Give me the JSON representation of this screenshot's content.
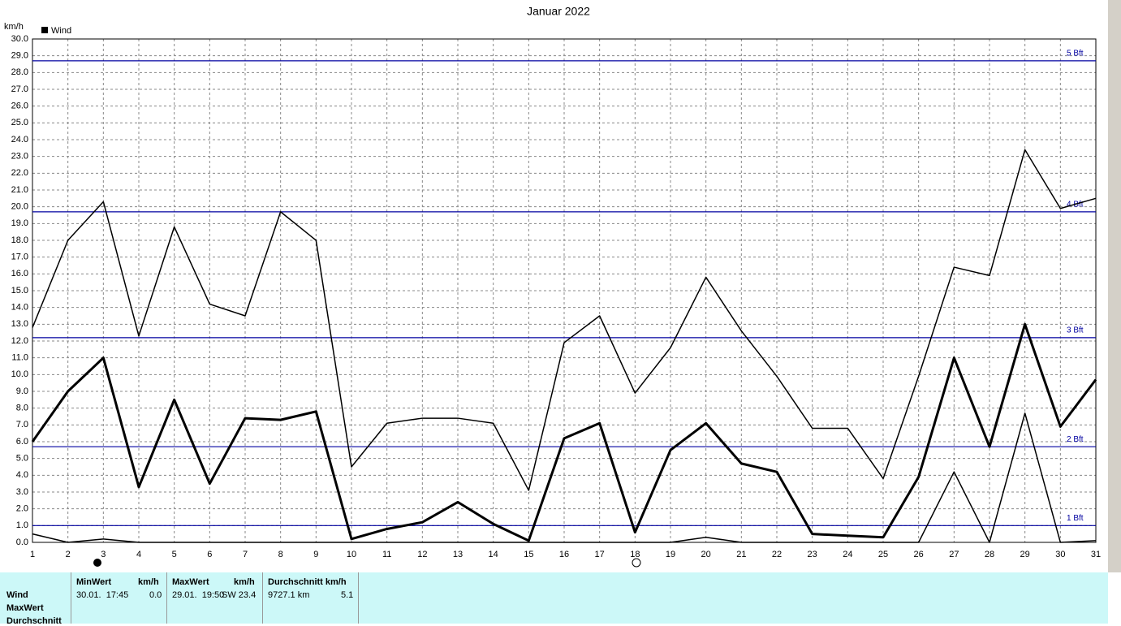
{
  "chart_data": {
    "type": "line",
    "title": "Januar 2022",
    "y_label": "km/h",
    "legend": "Wind",
    "legend_color": "#000000",
    "x": [
      1,
      2,
      3,
      4,
      5,
      6,
      7,
      8,
      9,
      10,
      11,
      12,
      13,
      14,
      15,
      16,
      17,
      18,
      19,
      20,
      21,
      22,
      23,
      24,
      25,
      26,
      27,
      28,
      29,
      30,
      31
    ],
    "xlim": [
      1,
      31
    ],
    "xticks": [
      1,
      2,
      3,
      4,
      5,
      6,
      7,
      8,
      9,
      10,
      11,
      12,
      13,
      14,
      15,
      16,
      17,
      18,
      19,
      20,
      21,
      22,
      23,
      24,
      25,
      26,
      27,
      28,
      29,
      30,
      31
    ],
    "ylim": [
      0,
      30
    ],
    "yticks": [
      {
        "value": 0,
        "label": "0.0"
      },
      {
        "value": 1,
        "label": "1.0"
      },
      {
        "value": 2,
        "label": "2.0"
      },
      {
        "value": 3,
        "label": "3.0"
      },
      {
        "value": 4,
        "label": "4.0"
      },
      {
        "value": 5,
        "label": "5.0"
      },
      {
        "value": 6,
        "label": "6.0"
      },
      {
        "value": 7,
        "label": "7.0"
      },
      {
        "value": 8,
        "label": "8.0"
      },
      {
        "value": 9,
        "label": "9.0"
      },
      {
        "value": 10,
        "label": "10.0"
      },
      {
        "value": 11,
        "label": "11.0"
      },
      {
        "value": 12,
        "label": "12.0"
      },
      {
        "value": 13,
        "label": "13.0"
      },
      {
        "value": 14,
        "label": "14.0"
      },
      {
        "value": 15,
        "label": "15.0"
      },
      {
        "value": 16,
        "label": "16.0"
      },
      {
        "value": 17,
        "label": "17.0"
      },
      {
        "value": 18,
        "label": "18.0"
      },
      {
        "value": 19,
        "label": "19.0"
      },
      {
        "value": 20,
        "label": "20.0"
      },
      {
        "value": 21,
        "label": "21.0"
      },
      {
        "value": 22,
        "label": "22.0"
      },
      {
        "value": 23,
        "label": "23.0"
      },
      {
        "value": 24,
        "label": "24.0"
      },
      {
        "value": 25,
        "label": "25.0"
      },
      {
        "value": 26,
        "label": "26.0"
      },
      {
        "value": 27,
        "label": "27.0"
      },
      {
        "value": 28,
        "label": "28.0"
      },
      {
        "value": 29,
        "label": "29.0"
      },
      {
        "value": 30,
        "label": "30.0"
      }
    ],
    "grid": true,
    "series": [
      {
        "color": "#000000",
        "width": 1.5,
        "values": [
          12.8,
          18.0,
          20.3,
          12.3,
          18.8,
          14.2,
          13.5,
          19.7,
          18.0,
          4.5,
          7.1,
          7.4,
          7.4,
          7.1,
          3.1,
          11.9,
          13.5,
          8.9,
          11.6,
          15.8,
          12.6,
          9.9,
          6.8,
          6.8,
          3.8,
          9.9,
          16.4,
          15.9,
          23.4,
          19.9,
          20.5
        ]
      },
      {
        "color": "#000000",
        "width": 3,
        "values": [
          6.0,
          9.0,
          11.0,
          3.3,
          8.5,
          3.5,
          7.4,
          7.3,
          7.8,
          0.2,
          0.8,
          1.2,
          2.4,
          1.1,
          0.1,
          6.2,
          7.1,
          0.6,
          5.5,
          7.1,
          4.7,
          4.2,
          0.5,
          0.4,
          0.3,
          3.9,
          11.0,
          5.7,
          13.0,
          6.9,
          9.7
        ]
      },
      {
        "color": "#000000",
        "width": 1.5,
        "values": [
          0.5,
          0.0,
          0.2,
          0.0,
          0.0,
          0.0,
          0.0,
          0.0,
          0.0,
          0.0,
          0.0,
          0.0,
          0.0,
          0.0,
          0.0,
          0.0,
          0.0,
          0.0,
          0.0,
          0.3,
          0.0,
          0.0,
          0.0,
          0.0,
          0.0,
          0.0,
          4.2,
          0.0,
          7.7,
          0.0,
          0.1
        ]
      }
    ],
    "reference_lines": [
      {
        "value": 1.0,
        "label": "1 Bft"
      },
      {
        "value": 5.7,
        "label": "2 Bft"
      },
      {
        "value": 12.2,
        "label": "3 Bft"
      },
      {
        "value": 19.7,
        "label": "4 Bft"
      },
      {
        "value": 28.7,
        "label": "5 Bft"
      }
    ],
    "reference_color": "#0000a0"
  },
  "stats": {
    "rows": [
      "Wind",
      "MaxWert",
      "Durchschnitt"
    ],
    "min": {
      "header": "MinWert",
      "unit": "km/h",
      "time": "30.01.  17:45",
      "value": "0.0"
    },
    "max": {
      "header": "MaxWert",
      "unit": "km/h",
      "time": "29.01.  19:50",
      "value": "SW 23.4"
    },
    "avg": {
      "header": "Durchschnitt km/h",
      "distance": "9727.1 km",
      "value": "5.1"
    }
  }
}
